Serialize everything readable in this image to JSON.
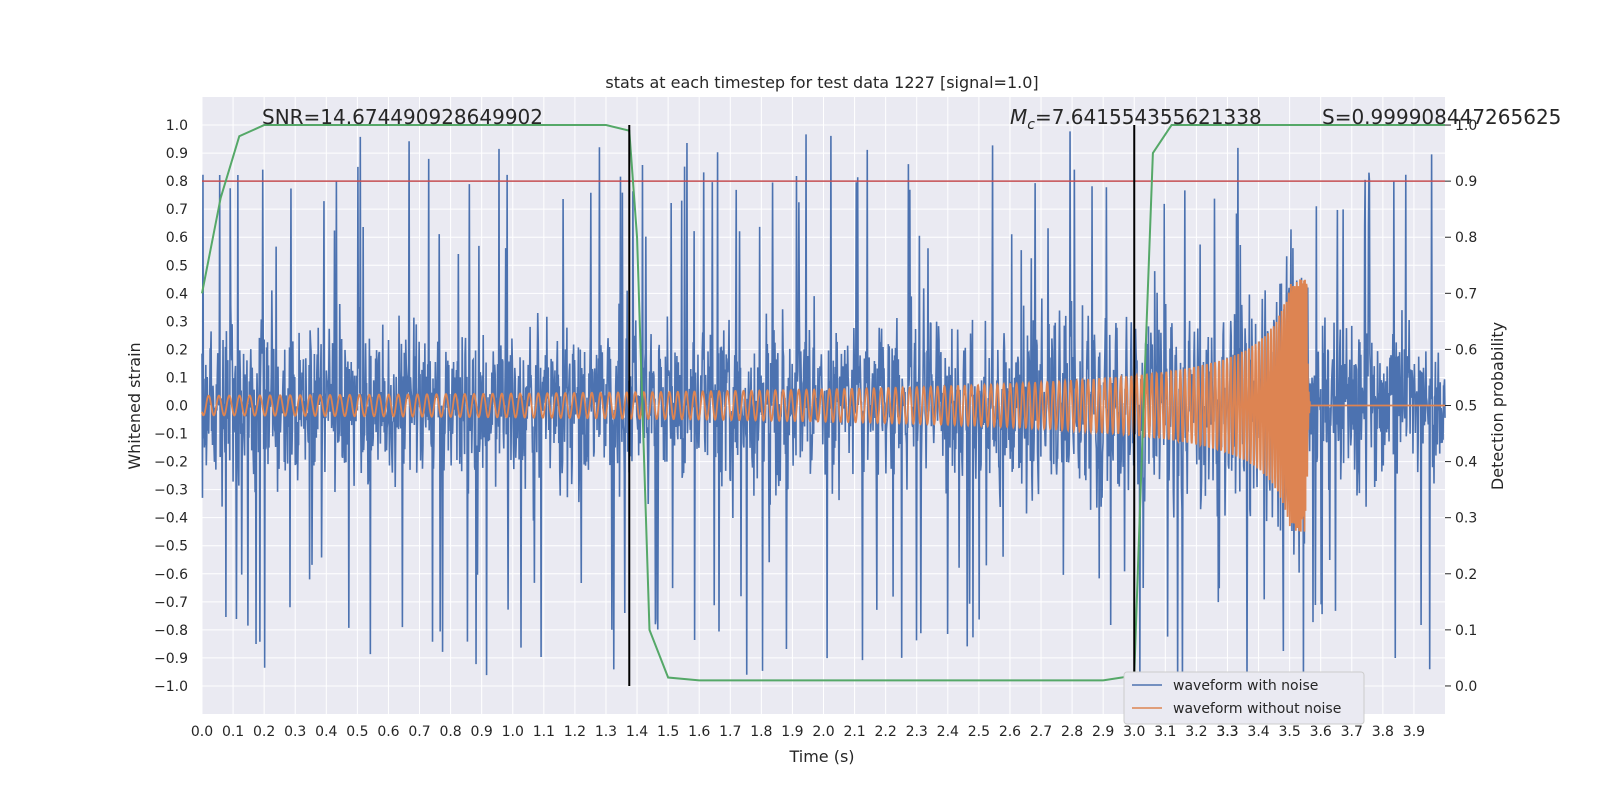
{
  "chart_data": {
    "type": "line",
    "title": "stats at each timestep for test data 1227 [signal=1.0]",
    "xlabel": "Time (s)",
    "ylabel": "Whitened strain",
    "ylabel_right": "Detection probability",
    "xlim": [
      0.0,
      4.0
    ],
    "ylim": [
      -1.1,
      1.1
    ],
    "ylim_right": [
      -0.05,
      1.05
    ],
    "x_ticks": [
      "0.0",
      "0.1",
      "0.2",
      "0.3",
      "0.4",
      "0.5",
      "0.6",
      "0.7",
      "0.8",
      "0.9",
      "1.0",
      "1.1",
      "1.2",
      "1.3",
      "1.4",
      "1.5",
      "1.6",
      "1.7",
      "1.8",
      "1.9",
      "2.0",
      "2.1",
      "2.2",
      "2.3",
      "2.4",
      "2.5",
      "2.6",
      "2.7",
      "2.8",
      "2.9",
      "3.0",
      "3.1",
      "3.2",
      "3.3",
      "3.3",
      "3.4",
      "3.5",
      "3.6",
      "3.7",
      "3.8",
      "3.9"
    ],
    "x_tick_values": [
      0.0,
      0.1,
      0.2,
      0.3,
      0.4,
      0.5,
      0.6,
      0.7,
      0.8,
      0.9,
      1.0,
      1.1,
      1.2,
      1.3,
      1.4,
      1.5,
      1.6,
      1.7,
      1.8,
      1.9,
      2.0,
      2.1,
      2.2,
      2.3,
      2.4,
      2.5,
      2.6,
      2.7,
      2.8,
      2.9,
      3.0,
      3.1,
      3.2,
      3.3,
      3.3,
      3.4,
      3.5,
      3.6,
      3.7,
      3.8,
      3.9
    ],
    "y_ticks": [
      "1.0",
      "0.9",
      "0.8",
      "0.7",
      "0.6",
      "0.5",
      "0.4",
      "0.3",
      "0.2",
      "0.1",
      "0.0",
      "−0.1",
      "−0.2",
      "−0.3",
      "−0.4",
      "−0.5",
      "−0.6",
      "−0.7",
      "−0.8",
      "−0.9",
      "−1.0"
    ],
    "y_tick_values": [
      1.0,
      0.9,
      0.8,
      0.7,
      0.6,
      0.5,
      0.4,
      0.3,
      0.2,
      0.1,
      0.0,
      -0.1,
      -0.2,
      -0.3,
      -0.4,
      -0.5,
      -0.6,
      -0.7,
      -0.8,
      -0.9,
      -1.0
    ],
    "y_ticks_right": [
      "1.0",
      "0.9",
      "0.8",
      "0.7",
      "0.6",
      "0.5",
      "0.4",
      "0.3",
      "0.2",
      "0.1",
      "0.0"
    ],
    "y_tick_values_right": [
      1.0,
      0.9,
      0.8,
      0.7,
      0.6,
      0.5,
      0.4,
      0.3,
      0.2,
      0.1,
      0.0
    ],
    "threshold": {
      "axis": "right",
      "value": 0.9,
      "color": "#c44e52"
    },
    "vlines": [
      1.375,
      3.0
    ],
    "vline_range": [
      -1.0,
      1.0
    ],
    "series": [
      {
        "name": "waveform with noise",
        "color": "#4c72b0",
        "kind": "noise",
        "t_start": 0.0,
        "t_end": 4.0,
        "peak_max": 1.0,
        "peak_min": -1.0
      },
      {
        "name": "waveform without noise",
        "color": "#dd8452",
        "kind": "chirp",
        "t_start": 0.0,
        "t_merger": 3.555,
        "amp_start": 0.035,
        "amp_peak": 0.45
      },
      {
        "name": "detection probability",
        "color": "#55a868",
        "axis": "right",
        "points": [
          [
            0.0,
            0.7
          ],
          [
            0.06,
            0.87
          ],
          [
            0.12,
            0.98
          ],
          [
            0.2,
            1.0
          ],
          [
            1.3,
            1.0
          ],
          [
            1.375,
            0.99
          ],
          [
            1.4,
            0.8
          ],
          [
            1.44,
            0.1
          ],
          [
            1.5,
            0.015
          ],
          [
            1.6,
            0.01
          ],
          [
            2.9,
            0.01
          ],
          [
            2.96,
            0.015
          ],
          [
            3.0,
            0.02
          ],
          [
            3.03,
            0.5
          ],
          [
            3.06,
            0.95
          ],
          [
            3.12,
            1.0
          ],
          [
            3.9,
            1.0
          ],
          [
            4.0,
            1.0
          ]
        ]
      }
    ],
    "annotations": {
      "snr": "SNR=14.674490928649902",
      "mc_symbol": "M",
      "mc_sub": "c",
      "mc_value": "=7.641554355621338",
      "s": "S=0.999908447265625"
    },
    "legend": {
      "placement": "lower-right",
      "entries": [
        "waveform with noise",
        "waveform without noise"
      ]
    }
  }
}
